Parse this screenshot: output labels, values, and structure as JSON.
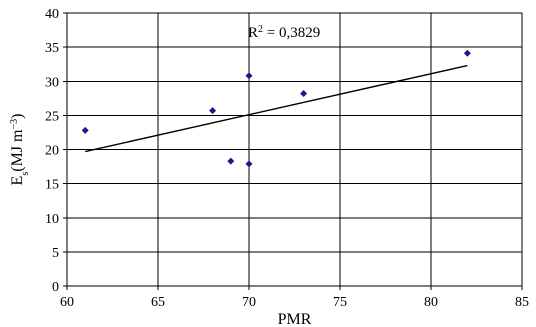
{
  "chart_data": {
    "type": "scatter",
    "title": "",
    "xlabel": "PMR",
    "ylabel": {
      "main": "E",
      "sub": "s",
      "unit_open": "(MJ m",
      "unit_sup": "−3",
      "unit_close": ")"
    },
    "xlim": [
      60,
      85
    ],
    "ylim": [
      0,
      40
    ],
    "x_ticks": [
      60,
      65,
      70,
      75,
      80,
      85
    ],
    "y_ticks": [
      0,
      5,
      10,
      15,
      20,
      25,
      30,
      35,
      40
    ],
    "grid": true,
    "legend": "none",
    "series": [
      {
        "points": [
          {
            "x": 61,
            "y": 22.8
          },
          {
            "x": 68,
            "y": 25.7
          },
          {
            "x": 69,
            "y": 18.3
          },
          {
            "x": 70,
            "y": 30.8
          },
          {
            "x": 70,
            "y": 17.9
          },
          {
            "x": 73,
            "y": 28.2
          },
          {
            "x": 82,
            "y": 34.1
          }
        ],
        "marker": "diamond",
        "color": "#1a1a8c"
      }
    ],
    "trendline": {
      "type": "linear",
      "from": {
        "x": 61,
        "y": 19.7
      },
      "to": {
        "x": 82,
        "y": 32.3
      },
      "color": "#000000"
    },
    "annotations": [
      {
        "base": "R",
        "sup": "2",
        "rest": " = 0,3829"
      }
    ]
  }
}
